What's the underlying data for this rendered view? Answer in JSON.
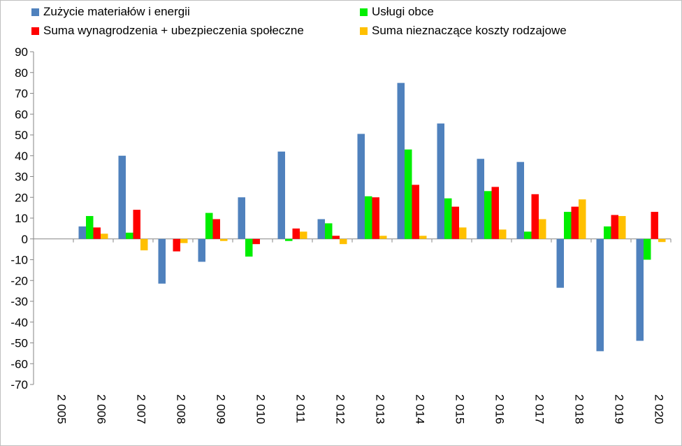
{
  "chart_data": {
    "type": "bar",
    "title": "",
    "xlabel": "",
    "ylabel": "",
    "ylim": [
      -70,
      90
    ],
    "yticks": [
      90,
      80,
      70,
      60,
      50,
      40,
      30,
      20,
      10,
      0,
      -10,
      -20,
      -30,
      -40,
      -50,
      -60,
      -70
    ],
    "grid": false,
    "legend_position": "top",
    "categories": [
      "2 005",
      "2 006",
      "2 007",
      "2 008",
      "2 009",
      "2 010",
      "2 011",
      "2 012",
      "2 013",
      "2 014",
      "2 015",
      "2 016",
      "2 017",
      "2 018",
      "2 019",
      "2 020"
    ],
    "series": [
      {
        "name": "Zużycie materiałów i energii",
        "color": "#4f81bd",
        "values": [
          0,
          6,
          40,
          -21.5,
          -11,
          20,
          42,
          9.5,
          50.5,
          75,
          55.5,
          38.5,
          37,
          -23.5,
          -54,
          -49
        ]
      },
      {
        "name": "Usługi obce",
        "color": "#00ee00",
        "values": [
          0,
          11,
          3,
          0,
          12.5,
          -8.5,
          -1,
          7.5,
          20.5,
          43,
          19.5,
          23,
          3.5,
          13,
          6,
          -10
        ]
      },
      {
        "name": "Suma wynagrodzenia + ubezpieczenia społeczne",
        "color": "#ff0000",
        "values": [
          0,
          5.5,
          14,
          -6,
          9.5,
          -2.5,
          5,
          1.5,
          20,
          26,
          15.5,
          25,
          21.5,
          15.5,
          11.5,
          13
        ]
      },
      {
        "name": "Suma nieznaczące koszty rodzajowe",
        "color": "#ffc000",
        "values": [
          0,
          2.5,
          -5.5,
          -2,
          -1,
          0,
          3.5,
          -2.5,
          1.5,
          1.5,
          5.5,
          4.5,
          9.5,
          19,
          11,
          -1.5
        ]
      }
    ]
  }
}
